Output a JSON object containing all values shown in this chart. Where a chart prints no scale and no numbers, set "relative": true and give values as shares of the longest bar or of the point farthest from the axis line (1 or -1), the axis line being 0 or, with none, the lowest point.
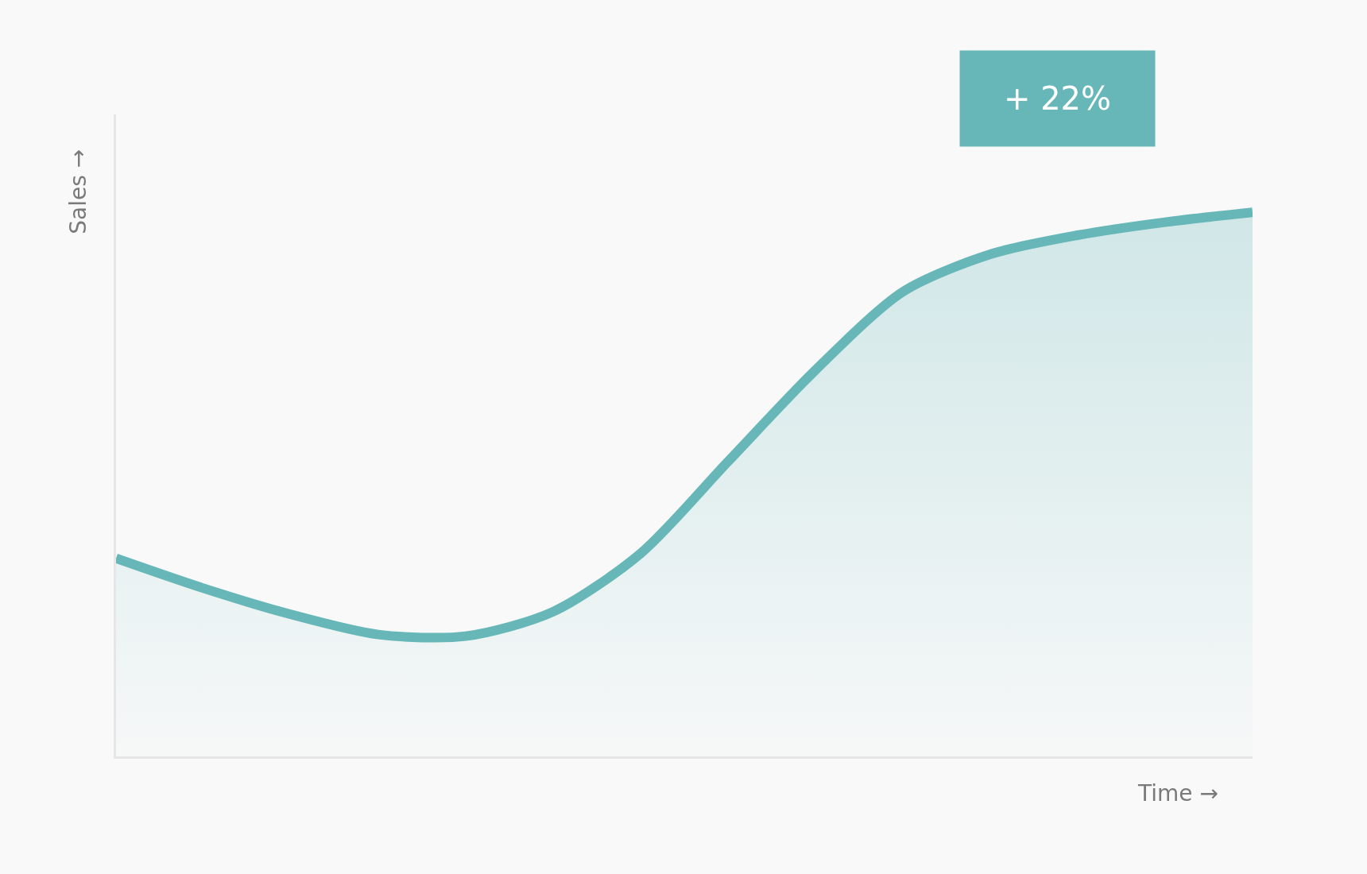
{
  "chart_data": {
    "type": "area",
    "relative": true,
    "xlabel": "Time →",
    "ylabel": "Sales →",
    "annotations": [
      "+ 22%"
    ],
    "categories": [
      null,
      null,
      null,
      null,
      null,
      null,
      null,
      null,
      null,
      null,
      null,
      null,
      null,
      null
    ],
    "series": [
      {
        "color": "#67b7b9",
        "values": [
          0.364,
          0.309,
          0.261,
          0.224,
          0.221,
          0.266,
          0.373,
          0.542,
          0.71,
          0.854,
          0.923,
          0.958,
          0.982,
          1.0
        ]
      }
    ],
    "grid": false
  }
}
